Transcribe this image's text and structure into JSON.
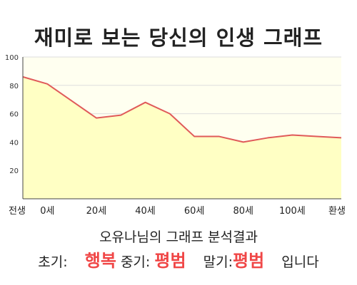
{
  "title": "재미로 보는 당신의 인생 그래프",
  "summary": "오유나님의 그래프 분석결과",
  "results": {
    "early_label": "초기:",
    "early_value": "행복",
    "mid_label": "중기:",
    "mid_value": "평범",
    "late_label": "말기:",
    "late_value": "평범",
    "ending": "입니다"
  },
  "chart_data": {
    "type": "area",
    "x_categories": [
      "전생",
      "0세",
      "20세",
      "40세",
      "60세",
      "80세",
      "100세",
      "환생"
    ],
    "x": [
      "전생",
      "0세",
      "10세",
      "20세",
      "30세",
      "40세",
      "50세",
      "60세",
      "70세",
      "80세",
      "90세",
      "100세",
      "110세",
      "환생"
    ],
    "values": [
      86,
      81,
      69,
      57,
      59,
      68,
      60,
      44,
      44,
      40,
      43,
      45,
      44,
      43
    ],
    "ylim": [
      0,
      100
    ],
    "yticks": [
      20,
      40,
      60,
      80,
      100
    ],
    "grid": true,
    "colors": {
      "line": "#e05a5a",
      "fill": "#ffffc4",
      "plot_bg": "#fffff0",
      "grid": "#dedede"
    }
  }
}
